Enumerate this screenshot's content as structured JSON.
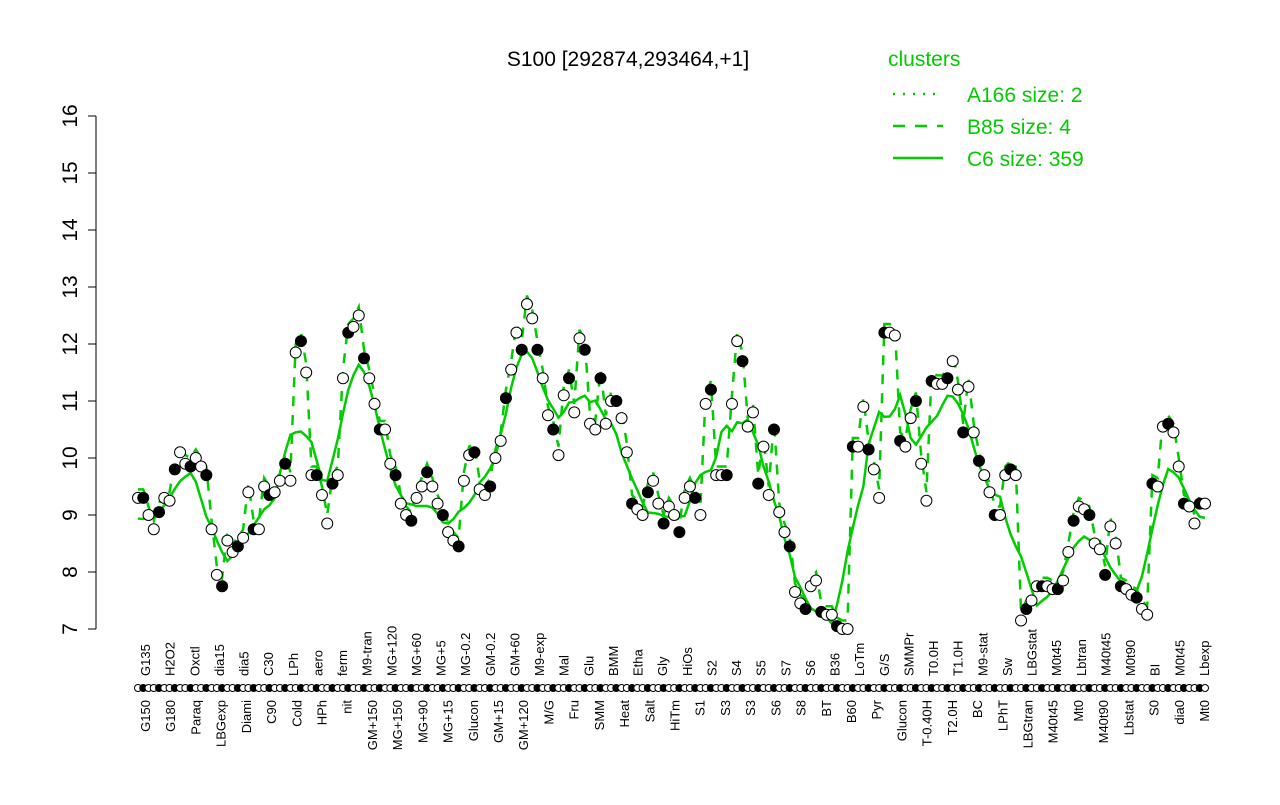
{
  "chart_data": {
    "type": "line",
    "title": "S100 [292874,293464,+1]",
    "xlabel": "",
    "ylabel": "",
    "ylim": [
      7,
      16
    ],
    "yticks": [
      7,
      8,
      9,
      10,
      11,
      12,
      13,
      14,
      15,
      16
    ],
    "grid": false,
    "legend": {
      "title": "clusters",
      "placement": "top-right",
      "entries": [
        {
          "name": "A166 size: 2",
          "style": "dotted",
          "color": "#00cc00"
        },
        {
          "name": "B85 size: 4",
          "style": "dashed",
          "color": "#00cc00"
        },
        {
          "name": "C6 size: 359",
          "style": "solid",
          "color": "#00cc00"
        }
      ]
    },
    "tick_labels_top": [
      "G135",
      "H2O2",
      "Oxctl",
      "dia15",
      "dia5",
      "C30",
      "LPh",
      "aero",
      "ferm",
      "M9-tran",
      "MG+120",
      "MG+60",
      "MG+5",
      "MG-0.2",
      "GM-0.2",
      "GM+60",
      "M9-exp",
      "Mal",
      "Glu",
      "BMM",
      "Etha",
      "Gly",
      "HiOs",
      "S2",
      "S4",
      "S5",
      "S7",
      "S6",
      "B36",
      "LoTm",
      "G/S",
      "SMMPr",
      "T0.0H",
      "T1.0H",
      "M9-stat",
      "Sw",
      "LBGstat",
      "M0t45",
      "Lbtran",
      "M40t45",
      "M0t90",
      "BI",
      "M0t45",
      "Lbexp"
    ],
    "tick_labels_bottom": [
      "G150",
      "G180",
      "Paraq",
      "LBGexp",
      "Diami",
      "C90",
      "Cold",
      "HPh",
      "nit",
      "GM+150",
      "MG+150",
      "MG+90",
      "MG+15",
      "Glucon",
      "GM+15",
      "GM+120",
      "M/G",
      "Fru",
      "SMM",
      "Heat",
      "Salt",
      "HiTm",
      "S1",
      "S3",
      "S3",
      "S6",
      "S8",
      "BT",
      "B60",
      "Pyr",
      "Glucon",
      "T-0.40H",
      "T2.0H",
      "BC",
      "LPhT",
      "LBGtran",
      "M40t45",
      "Mt0",
      "M40t90",
      "Lbstat",
      "S0",
      "dia0",
      "Mt0"
    ],
    "values": [
      9.3,
      9.3,
      9.0,
      8.75,
      9.05,
      9.3,
      9.25,
      9.8,
      10.1,
      9.9,
      9.85,
      10.0,
      9.85,
      9.7,
      8.75,
      7.95,
      7.75,
      8.55,
      8.35,
      8.45,
      8.6,
      9.4,
      8.75,
      8.75,
      9.5,
      9.35,
      9.4,
      9.6,
      9.9,
      9.6,
      11.85,
      12.05,
      11.5,
      9.7,
      9.7,
      9.35,
      8.85,
      9.55,
      9.7,
      11.4,
      12.2,
      12.3,
      12.5,
      11.75,
      11.4,
      10.95,
      10.5,
      10.5,
      9.9,
      9.7,
      9.2,
      9.0,
      8.9,
      9.3,
      9.5,
      9.75,
      9.5,
      9.2,
      9.0,
      8.7,
      8.55,
      8.45,
      9.6,
      10.05,
      10.1,
      9.45,
      9.35,
      9.5,
      10.0,
      10.3,
      11.05,
      11.55,
      12.2,
      11.9,
      12.7,
      12.45,
      11.9,
      11.4,
      10.75,
      10.5,
      10.05,
      11.1,
      11.4,
      10.8,
      12.1,
      11.9,
      10.6,
      10.5,
      11.4,
      10.6,
      11.0,
      11.0,
      10.7,
      10.1,
      9.2,
      9.1,
      9.0,
      9.4,
      9.6,
      9.2,
      8.85,
      9.15,
      9.0,
      8.7,
      9.3,
      9.5,
      9.3,
      9.0,
      10.95,
      11.2,
      9.7,
      9.7,
      9.7,
      10.95,
      12.05,
      11.7,
      10.55,
      10.8,
      9.55,
      10.2,
      9.35,
      10.5,
      9.05,
      8.7,
      8.45,
      7.65,
      7.45,
      7.35,
      7.75,
      7.85,
      7.3,
      7.25,
      7.25,
      7.05,
      7.0,
      7.0,
      10.2,
      10.2,
      10.9,
      10.15,
      9.8,
      9.3,
      12.2,
      12.2,
      12.15,
      10.3,
      10.2,
      10.7,
      11.0,
      9.9,
      9.25,
      11.35,
      11.3,
      11.3,
      11.4,
      11.7,
      11.2,
      10.45,
      11.25,
      10.45,
      9.95,
      9.7,
      9.4,
      9.0,
      9.0,
      9.7,
      9.8,
      9.7,
      7.15,
      7.35,
      7.5,
      7.75,
      7.75,
      7.75,
      7.7,
      7.7,
      7.85,
      8.35,
      8.9,
      9.15,
      9.1,
      9.0,
      8.5,
      8.4,
      7.95,
      8.8,
      8.5,
      7.75,
      7.7,
      7.6,
      7.55,
      7.35,
      7.25,
      9.55,
      9.5,
      10.55,
      10.6,
      10.45,
      9.85,
      9.2,
      9.15,
      8.85,
      9.2,
      9.2
    ]
  }
}
